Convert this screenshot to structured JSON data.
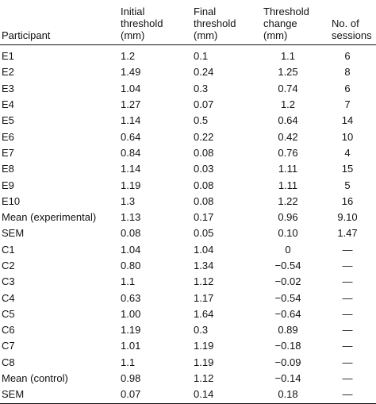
{
  "headers": {
    "participant": "Participant",
    "initial": [
      "Initial",
      "threshold",
      "(mm)"
    ],
    "final": [
      "Final",
      "threshold",
      "(mm)"
    ],
    "change": [
      "Threshold",
      "change",
      "(mm)"
    ],
    "sessions": [
      "No. of",
      "sessions"
    ]
  },
  "rows": [
    {
      "participant": "E1",
      "initial": "1.2",
      "final": "0.1",
      "change": "1.1",
      "sessions": "6"
    },
    {
      "participant": "E2",
      "initial": "1.49",
      "final": "0.24",
      "change": "1.25",
      "sessions": "8"
    },
    {
      "participant": "E3",
      "initial": "1.04",
      "final": "0.3",
      "change": "0.74",
      "sessions": "6"
    },
    {
      "participant": "E4",
      "initial": "1.27",
      "final": "0.07",
      "change": "1.2",
      "sessions": "7"
    },
    {
      "participant": "E5",
      "initial": "1.14",
      "final": "0.5",
      "change": "0.64",
      "sessions": "14"
    },
    {
      "participant": "E6",
      "initial": "0.64",
      "final": "0.22",
      "change": "0.42",
      "sessions": "10"
    },
    {
      "participant": "E7",
      "initial": "0.84",
      "final": "0.08",
      "change": "0.76",
      "sessions": "4"
    },
    {
      "participant": "E8",
      "initial": "1.14",
      "final": "0.03",
      "change": "1.11",
      "sessions": "15"
    },
    {
      "participant": "E9",
      "initial": "1.19",
      "final": "0.08",
      "change": "1.11",
      "sessions": "5"
    },
    {
      "participant": "E10",
      "initial": "1.3",
      "final": "0.08",
      "change": "1.22",
      "sessions": "16"
    },
    {
      "participant": "Mean (experimental)",
      "initial": "1.13",
      "final": "0.17",
      "change": "0.96",
      "sessions": "9.10"
    },
    {
      "participant": "SEM",
      "initial": "0.08",
      "final": "0.05",
      "change": "0.10",
      "sessions": "1.47"
    },
    {
      "participant": "C1",
      "initial": "1.04",
      "final": "1.04",
      "change": "0",
      "sessions": "—"
    },
    {
      "participant": "C2",
      "initial": "0.80",
      "final": "1.34",
      "change": "−0.54",
      "sessions": "—"
    },
    {
      "participant": "C3",
      "initial": "1.1",
      "final": "1.12",
      "change": "−0.02",
      "sessions": "—"
    },
    {
      "participant": "C4",
      "initial": "0.63",
      "final": "1.17",
      "change": "−0.54",
      "sessions": "—"
    },
    {
      "participant": "C5",
      "initial": "1.00",
      "final": "1.64",
      "change": "−0.64",
      "sessions": "—"
    },
    {
      "participant": "C6",
      "initial": "1.19",
      "final": "0.3",
      "change": "0.89",
      "sessions": "—"
    },
    {
      "participant": "C7",
      "initial": "1.01",
      "final": "1.19",
      "change": "−0.18",
      "sessions": "—"
    },
    {
      "participant": "C8",
      "initial": "1.1",
      "final": "1.19",
      "change": "−0.09",
      "sessions": "—"
    },
    {
      "participant": "Mean (control)",
      "initial": "0.98",
      "final": "1.12",
      "change": "−0.14",
      "sessions": "—"
    },
    {
      "participant": "SEM",
      "initial": "0.07",
      "final": "0.14",
      "change": "0.18",
      "sessions": "—"
    }
  ]
}
